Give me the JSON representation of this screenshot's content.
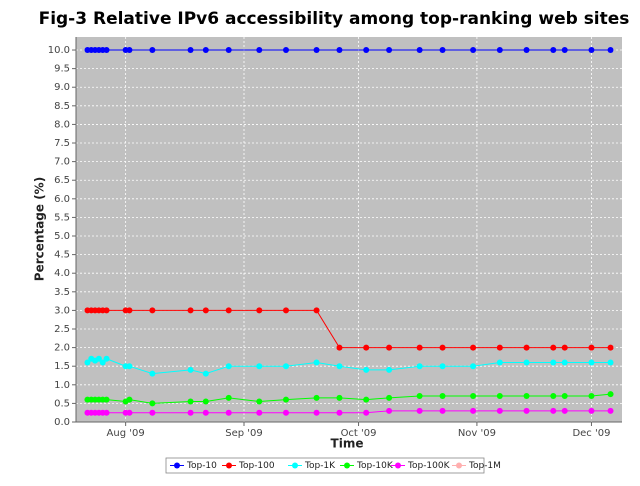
{
  "chart_data": {
    "type": "line",
    "title": "Fig-3 Relative IPv6 accessibility among top-ranking web sites",
    "x_label": "Time",
    "y_label": "Percentage (%)",
    "x": [
      "2009-07-22",
      "2009-07-23",
      "2009-07-24",
      "2009-07-25",
      "2009-07-26",
      "2009-07-27",
      "2009-08-01",
      "2009-08-02",
      "2009-08-08",
      "2009-08-18",
      "2009-08-22",
      "2009-08-28",
      "2009-09-05",
      "2009-09-12",
      "2009-09-20",
      "2009-09-26",
      "2009-10-03",
      "2009-10-09",
      "2009-10-17",
      "2009-10-23",
      "2009-10-31",
      "2009-11-07",
      "2009-11-14",
      "2009-11-21",
      "2009-11-24",
      "2009-12-01",
      "2009-12-06"
    ],
    "series": [
      {
        "name": "Top-10",
        "color": "#0000ff",
        "values": [
          10,
          10,
          10,
          10,
          10,
          10,
          10,
          10,
          10,
          10,
          10,
          10,
          10,
          10,
          10,
          10,
          10,
          10,
          10,
          10,
          10,
          10,
          10,
          10,
          10,
          10,
          10
        ]
      },
      {
        "name": "Top-100",
        "color": "#ff0000",
        "values": [
          3,
          3,
          3,
          3,
          3,
          3,
          3,
          3,
          3,
          3,
          3,
          3,
          3,
          3,
          3,
          2,
          2,
          2,
          2,
          2,
          2,
          2,
          2,
          2,
          2,
          2,
          2
        ]
      },
      {
        "name": "Top-1K",
        "color": "#00ffff",
        "values": [
          1.6,
          1.7,
          1.65,
          1.7,
          1.6,
          1.7,
          1.5,
          1.5,
          1.3,
          1.4,
          1.3,
          1.5,
          1.5,
          1.5,
          1.6,
          1.5,
          1.4,
          1.4,
          1.5,
          1.5,
          1.5,
          1.6,
          1.6,
          1.6,
          1.6,
          1.6,
          1.6
        ]
      },
      {
        "name": "Top-10K",
        "color": "#00ff00",
        "values": [
          0.6,
          0.6,
          0.6,
          0.6,
          0.6,
          0.6,
          0.55,
          0.6,
          0.5,
          0.55,
          0.55,
          0.65,
          0.55,
          0.6,
          0.65,
          0.65,
          0.6,
          0.65,
          0.7,
          0.7,
          0.7,
          0.7,
          0.7,
          0.7,
          0.7,
          0.7,
          0.75
        ]
      },
      {
        "name": "Top-100K",
        "color": "#ff00ff",
        "values": [
          0.25,
          0.25,
          0.25,
          0.25,
          0.25,
          0.25,
          0.25,
          0.25,
          0.25,
          0.25,
          0.25,
          0.25,
          0.25,
          0.25,
          0.25,
          0.25,
          0.25,
          0.3,
          0.3,
          0.3,
          0.3,
          0.3,
          0.3,
          0.3,
          0.3,
          0.3,
          0.3
        ]
      },
      {
        "name": "Top-1M",
        "color": "#ffafaf",
        "values": [
          null,
          null,
          null,
          null,
          null,
          null,
          null,
          null,
          null,
          null,
          null,
          null,
          null,
          null,
          null,
          null,
          null,
          null,
          null,
          null,
          null,
          null,
          null,
          null,
          null,
          null,
          null
        ]
      }
    ],
    "xlim": [
      "2009-07-19",
      "2009-12-09"
    ],
    "xticks": [
      {
        "value": "2009-08-01",
        "label": "Aug '09"
      },
      {
        "value": "2009-09-01",
        "label": "Sep '09"
      },
      {
        "value": "2009-10-01",
        "label": "Oct '09"
      },
      {
        "value": "2009-11-01",
        "label": "Nov '09"
      },
      {
        "value": "2009-12-01",
        "label": "Dec '09"
      }
    ],
    "ylim": [
      0,
      10.35
    ],
    "yticks": [
      {
        "value": 0,
        "label": "0.0"
      },
      {
        "value": 0.5,
        "label": "0.5"
      },
      {
        "value": 1,
        "label": "1.0"
      },
      {
        "value": 1.5,
        "label": "1.5"
      },
      {
        "value": 2,
        "label": "2.0"
      },
      {
        "value": 2.5,
        "label": "2.5"
      },
      {
        "value": 3,
        "label": "3.0"
      },
      {
        "value": 3.5,
        "label": "3.5"
      },
      {
        "value": 4,
        "label": "4.0"
      },
      {
        "value": 4.5,
        "label": "4.5"
      },
      {
        "value": 5,
        "label": "5.0"
      },
      {
        "value": 5.5,
        "label": "5.5"
      },
      {
        "value": 6,
        "label": "6.0"
      },
      {
        "value": 6.5,
        "label": "6.5"
      },
      {
        "value": 7,
        "label": "7.0"
      },
      {
        "value": 7.5,
        "label": "7.5"
      },
      {
        "value": 8,
        "label": "8.0"
      },
      {
        "value": 8.5,
        "label": "8.5"
      },
      {
        "value": 9,
        "label": "9.0"
      },
      {
        "value": 9.5,
        "label": "9.5"
      },
      {
        "value": 10,
        "label": "10.0"
      }
    ],
    "grid": true,
    "legend": "bottom"
  }
}
